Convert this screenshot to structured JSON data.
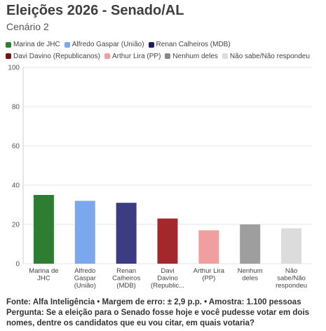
{
  "header": {
    "title": "Eleições 2026 - Senado/AL",
    "subtitle": "Cenário 2"
  },
  "chart_data": {
    "type": "bar",
    "categories": [
      "Marina de JHC",
      "Alfredo Gaspar (União)",
      "Renan Calheiros (MDB)",
      "Davi Davino (Republicanos)",
      "Arthur Lira (PP)",
      "Nenhum deles",
      "Não sabe/Não respondeu"
    ],
    "tick_labels": [
      [
        "Marina de",
        "JHC"
      ],
      [
        "Alfredo",
        "Gaspar",
        "(União)"
      ],
      [
        "Renan",
        "Calheiros",
        "(MDB)"
      ],
      [
        "Davi",
        "Davino",
        "(Republic..."
      ],
      [
        "Arthur Lira",
        "(PP)"
      ],
      [
        "Nenhum",
        "deles"
      ],
      [
        "Não",
        "sabe/Não",
        "respondeu"
      ]
    ],
    "values": [
      35,
      32,
      31,
      23,
      17,
      20,
      18
    ],
    "colors": [
      "#2e7d32",
      "#7ba7ec",
      "#3c3c82",
      "#a4282b",
      "#f19e9e",
      "#9e9e9e",
      "#dcdcdc"
    ],
    "legend": [
      {
        "label": "Marina de JHC",
        "color": "#2e7d32"
      },
      {
        "label": "Alfredo Gaspar (União)",
        "color": "#7ba7ec"
      },
      {
        "label": "Renan Calheiros (MDB)",
        "color": "#1f1f5c"
      },
      {
        "label": "Davi Davino (Republicanos)",
        "color": "#7a1414"
      },
      {
        "label": "Arthur Lira (PP)",
        "color": "#f19e9e"
      },
      {
        "label": "Nenhum deles",
        "color": "#8a8a8a"
      },
      {
        "label": "Não sabe/Não respondeu",
        "color": "#dcdcdc"
      }
    ],
    "legend_position": "top",
    "yticks": [
      0,
      20,
      40,
      60,
      80,
      100
    ],
    "ylim": [
      0,
      100
    ],
    "grid": true
  },
  "footer": {
    "source": "Fonte: Alfa Inteligência • Margem de erro: ± 2,9 p.p. • Amostra: 1.100 pessoas",
    "question": "Pergunta: Se a eleição para o Senado fosse hoje e você pudesse votar em dois nomes, dentre os candidatos que eu vou citar, em quais votaria?"
  }
}
